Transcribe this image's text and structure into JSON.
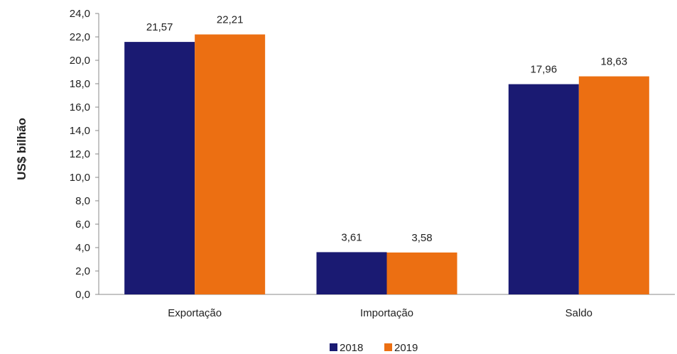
{
  "chart_data": {
    "type": "bar",
    "categories": [
      "Exportação",
      "Importação",
      "Saldo"
    ],
    "series": [
      {
        "name": "2018",
        "values": [
          21.57,
          3.61,
          17.96
        ],
        "labels": [
          "21,57",
          "3,61",
          "17,96"
        ],
        "color": "#1a1a72"
      },
      {
        "name": "2019",
        "values": [
          22.21,
          3.58,
          18.63
        ],
        "labels": [
          "22,21",
          "3,58",
          "18,63"
        ],
        "color": "#ec6f12"
      }
    ],
    "ylabel": "US$ bilhão",
    "ylim": [
      0,
      24
    ],
    "yticks": [
      "0,0",
      "2,0",
      "4,0",
      "6,0",
      "8,0",
      "10,0",
      "12,0",
      "14,0",
      "16,0",
      "18,0",
      "20,0",
      "22,0",
      "24,0"
    ],
    "legend_position": "bottom",
    "grid": false
  }
}
